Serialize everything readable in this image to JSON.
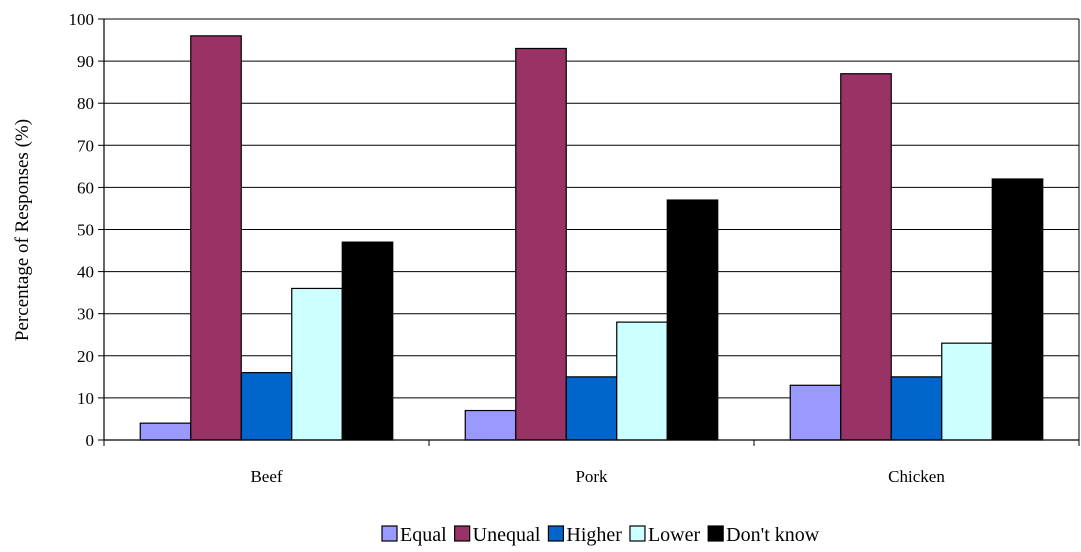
{
  "chart_data": {
    "type": "bar",
    "title": "",
    "xlabel": "",
    "ylabel": "Percentage of Responses (%)",
    "ylim": [
      0,
      100
    ],
    "yticks": [
      0,
      10,
      20,
      30,
      40,
      50,
      60,
      70,
      80,
      90,
      100
    ],
    "categories": [
      "Beef",
      "Pork",
      "Chicken"
    ],
    "series": [
      {
        "name": "Equal",
        "color": "#9999ff",
        "values": [
          4,
          7,
          13
        ]
      },
      {
        "name": "Unequal",
        "color": "#993366",
        "values": [
          96,
          93,
          87
        ]
      },
      {
        "name": "Higher",
        "color": "#0066cc",
        "values": [
          16,
          15,
          15
        ]
      },
      {
        "name": "Lower",
        "color": "#ccffff",
        "values": [
          36,
          28,
          23
        ]
      },
      {
        "name": "Don't know",
        "color": "#000000",
        "values": [
          47,
          57,
          62
        ]
      }
    ],
    "grid": true,
    "legend": "bottom"
  }
}
